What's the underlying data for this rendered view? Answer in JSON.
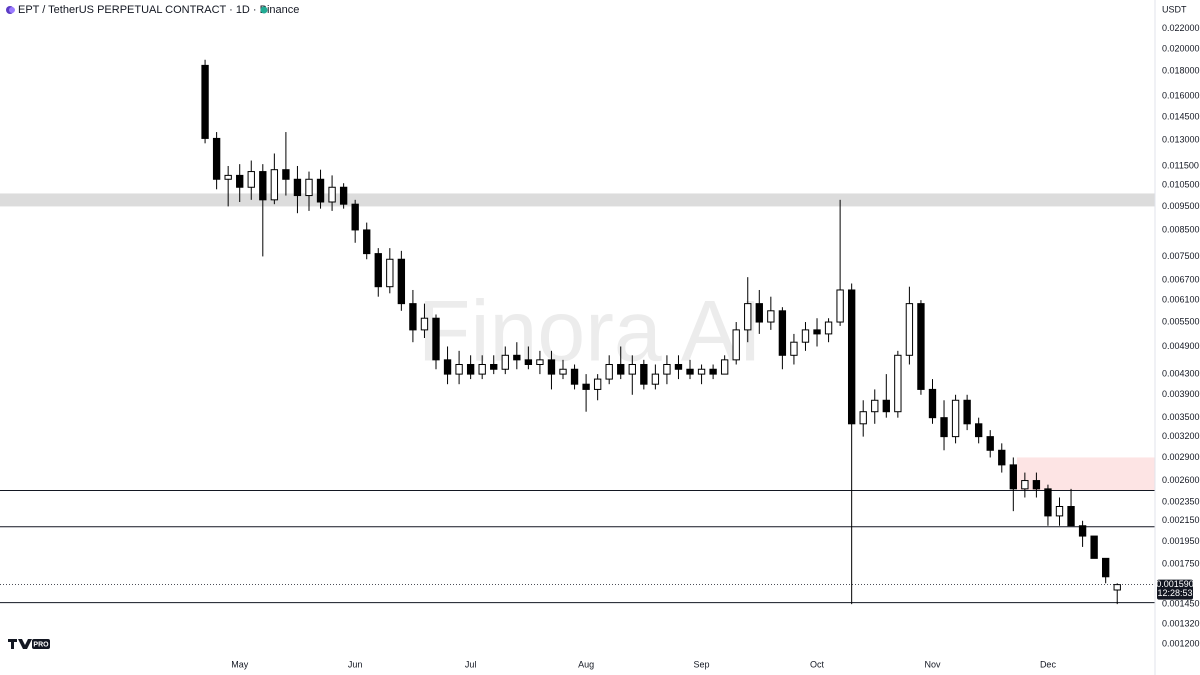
{
  "chart_data": {
    "type": "candlestick",
    "title": "EPT / TetherUS PERPETUAL CONTRACT · 1D · Binance",
    "currency": "USDT",
    "watermark": "Finora AI",
    "logo_badge": "PRO",
    "log_scale": true,
    "grid": false,
    "up_color": "#ffffff",
    "down_color": "#000000",
    "categories": [
      null,
      null,
      null,
      "May",
      null,
      null,
      null,
      null,
      null,
      null,
      null,
      null,
      null,
      "Jun",
      null,
      null,
      null,
      null,
      null,
      null,
      null,
      null,
      null,
      "Jul",
      null,
      null,
      null,
      null,
      null,
      null,
      null,
      null,
      null,
      "Aug",
      null,
      null,
      null,
      null,
      null,
      null,
      null,
      null,
      null,
      "Sep",
      null,
      null,
      null,
      null,
      null,
      null,
      null,
      null,
      null,
      "Oct",
      null,
      null,
      null,
      null,
      null,
      null,
      null,
      null,
      null,
      "Nov",
      null,
      null,
      null,
      null,
      null,
      null,
      null,
      null,
      null,
      "Dec",
      null,
      null,
      null,
      null,
      null,
      null
    ],
    "open": [
      0.0185,
      0.0131,
      0.0108,
      0.011,
      0.0104,
      0.0112,
      0.0098,
      0.0113,
      0.0108,
      0.01,
      0.0108,
      0.0097,
      0.0104,
      0.0096,
      0.0085,
      0.0076,
      0.0065,
      0.0074,
      0.006,
      0.0053,
      0.0056,
      0.0046,
      0.0043,
      0.0045,
      0.0043,
      0.0045,
      0.0044,
      0.0047,
      0.0046,
      0.0045,
      0.0046,
      0.0043,
      0.0044,
      0.0041,
      0.004,
      0.0042,
      0.0045,
      0.0043,
      0.0045,
      0.0041,
      0.0043,
      0.0045,
      0.0044,
      0.0043,
      0.0044,
      0.0043,
      0.0046,
      0.0053,
      0.006,
      0.0055,
      0.0058,
      0.0047,
      0.005,
      0.0053,
      0.0052,
      0.0055,
      0.0064,
      0.0034,
      0.0036,
      0.0038,
      0.0036,
      0.0047,
      0.006,
      0.004,
      0.0035,
      0.0032,
      0.0038,
      0.0034,
      0.0032,
      0.003,
      0.0028,
      0.0025,
      0.0026,
      0.0025,
      0.0022,
      0.0023,
      0.0021,
      0.002,
      0.0018,
      0.00155
    ],
    "high": [
      0.019,
      0.0135,
      0.0115,
      0.0116,
      0.0118,
      0.0116,
      0.0122,
      0.0135,
      0.0115,
      0.0112,
      0.0113,
      0.011,
      0.0106,
      0.0098,
      0.0088,
      0.0078,
      0.0078,
      0.0077,
      0.0064,
      0.006,
      0.0057,
      0.0049,
      0.0048,
      0.0047,
      0.0047,
      0.0047,
      0.0049,
      0.005,
      0.0049,
      0.0048,
      0.0048,
      0.0046,
      0.0045,
      0.0043,
      0.0043,
      0.0047,
      0.0049,
      0.0047,
      0.0046,
      0.0045,
      0.0047,
      0.0047,
      0.0046,
      0.0045,
      0.0045,
      0.0047,
      0.0055,
      0.0068,
      0.0064,
      0.0062,
      0.0059,
      0.0052,
      0.0055,
      0.0056,
      0.0056,
      0.0098,
      0.0066,
      0.0038,
      0.004,
      0.0043,
      0.0048,
      0.0065,
      0.0061,
      0.0042,
      0.0038,
      0.0039,
      0.0039,
      0.0035,
      0.0033,
      0.0031,
      0.0029,
      0.0027,
      0.0027,
      0.00255,
      0.0024,
      0.0025,
      0.00215,
      0.002,
      0.0018,
      0.0016
    ],
    "low": [
      0.0128,
      0.0103,
      0.0095,
      0.0097,
      0.0098,
      0.0075,
      0.0096,
      0.01,
      0.0092,
      0.0093,
      0.0094,
      0.0093,
      0.0094,
      0.008,
      0.0074,
      0.0062,
      0.0063,
      0.0058,
      0.005,
      0.0051,
      0.0044,
      0.0041,
      0.0041,
      0.0042,
      0.0042,
      0.0043,
      0.0043,
      0.0044,
      0.0044,
      0.0043,
      0.004,
      0.0042,
      0.004,
      0.0036,
      0.0038,
      0.0041,
      0.0042,
      0.0039,
      0.004,
      0.004,
      0.0041,
      0.0042,
      0.0042,
      0.0041,
      0.0042,
      0.0043,
      0.0045,
      0.005,
      0.0052,
      0.0053,
      0.0044,
      0.0045,
      0.0048,
      0.0049,
      0.005,
      0.0054,
      0.00145,
      0.0032,
      0.0034,
      0.0035,
      0.0035,
      0.0045,
      0.0039,
      0.0034,
      0.003,
      0.0031,
      0.0033,
      0.0031,
      0.0029,
      0.0027,
      0.00225,
      0.0024,
      0.0024,
      0.0021,
      0.0021,
      0.0021,
      0.0019,
      0.0018,
      0.0016,
      0.00145
    ],
    "close": [
      0.0131,
      0.0108,
      0.011,
      0.0104,
      0.0112,
      0.0098,
      0.0113,
      0.0108,
      0.01,
      0.0108,
      0.0097,
      0.0104,
      0.0096,
      0.0085,
      0.0076,
      0.0065,
      0.0074,
      0.006,
      0.0053,
      0.0056,
      0.0046,
      0.0043,
      0.0045,
      0.0043,
      0.0045,
      0.0044,
      0.0047,
      0.0046,
      0.0045,
      0.0046,
      0.0043,
      0.0044,
      0.0041,
      0.004,
      0.0042,
      0.0045,
      0.0043,
      0.0045,
      0.0041,
      0.0043,
      0.0045,
      0.0044,
      0.0043,
      0.0044,
      0.0043,
      0.0046,
      0.0053,
      0.006,
      0.0055,
      0.0058,
      0.0047,
      0.005,
      0.0053,
      0.0052,
      0.0055,
      0.0064,
      0.0034,
      0.0036,
      0.0038,
      0.0036,
      0.0047,
      0.006,
      0.004,
      0.0035,
      0.0032,
      0.0038,
      0.0034,
      0.0032,
      0.003,
      0.0028,
      0.0025,
      0.0026,
      0.0025,
      0.0022,
      0.0023,
      0.0021,
      0.002,
      0.0018,
      0.00165,
      0.00159
    ],
    "ylim": [
      0.00114,
      0.0252
    ],
    "yticks": [
      {
        "value": 0.022,
        "label": "0.022000"
      },
      {
        "value": 0.02,
        "label": "0.020000"
      },
      {
        "value": 0.018,
        "label": "0.018000"
      },
      {
        "value": 0.016,
        "label": "0.016000"
      },
      {
        "value": 0.0145,
        "label": "0.014500"
      },
      {
        "value": 0.013,
        "label": "0.013000"
      },
      {
        "value": 0.0115,
        "label": "0.011500"
      },
      {
        "value": 0.0105,
        "label": "0.010500"
      },
      {
        "value": 0.0095,
        "label": "0.009500"
      },
      {
        "value": 0.0085,
        "label": "0.008500"
      },
      {
        "value": 0.0075,
        "label": "0.007500"
      },
      {
        "value": 0.0067,
        "label": "0.006700"
      },
      {
        "value": 0.0061,
        "label": "0.006100"
      },
      {
        "value": 0.0055,
        "label": "0.005500"
      },
      {
        "value": 0.0049,
        "label": "0.004900"
      },
      {
        "value": 0.0043,
        "label": "0.004300"
      },
      {
        "value": 0.0039,
        "label": "0.003900"
      },
      {
        "value": 0.0035,
        "label": "0.003500"
      },
      {
        "value": 0.0032,
        "label": "0.003200"
      },
      {
        "value": 0.0029,
        "label": "0.002900"
      },
      {
        "value": 0.0026,
        "label": "0.002600"
      },
      {
        "value": 0.00235,
        "label": "0.002350"
      },
      {
        "value": 0.00215,
        "label": "0.002150"
      },
      {
        "value": 0.00195,
        "label": "0.001950"
      },
      {
        "value": 0.00175,
        "label": "0.001750"
      },
      {
        "value": 0.00145,
        "label": "0.001450"
      },
      {
        "value": 0.00132,
        "label": "0.001320"
      },
      {
        "value": 0.0012,
        "label": "0.001200"
      }
    ],
    "last_price": {
      "value": 0.00159,
      "label": "0.001590"
    },
    "countdown": "12:28:53",
    "zone": {
      "from": 0.0095,
      "to": 0.0101,
      "color": "#dcdcdc"
    },
    "box": {
      "from": 0.00248,
      "to": 0.0029,
      "color": "#fde4e4"
    },
    "hlines": [
      0.00248,
      0.00209,
      0.00146
    ]
  }
}
